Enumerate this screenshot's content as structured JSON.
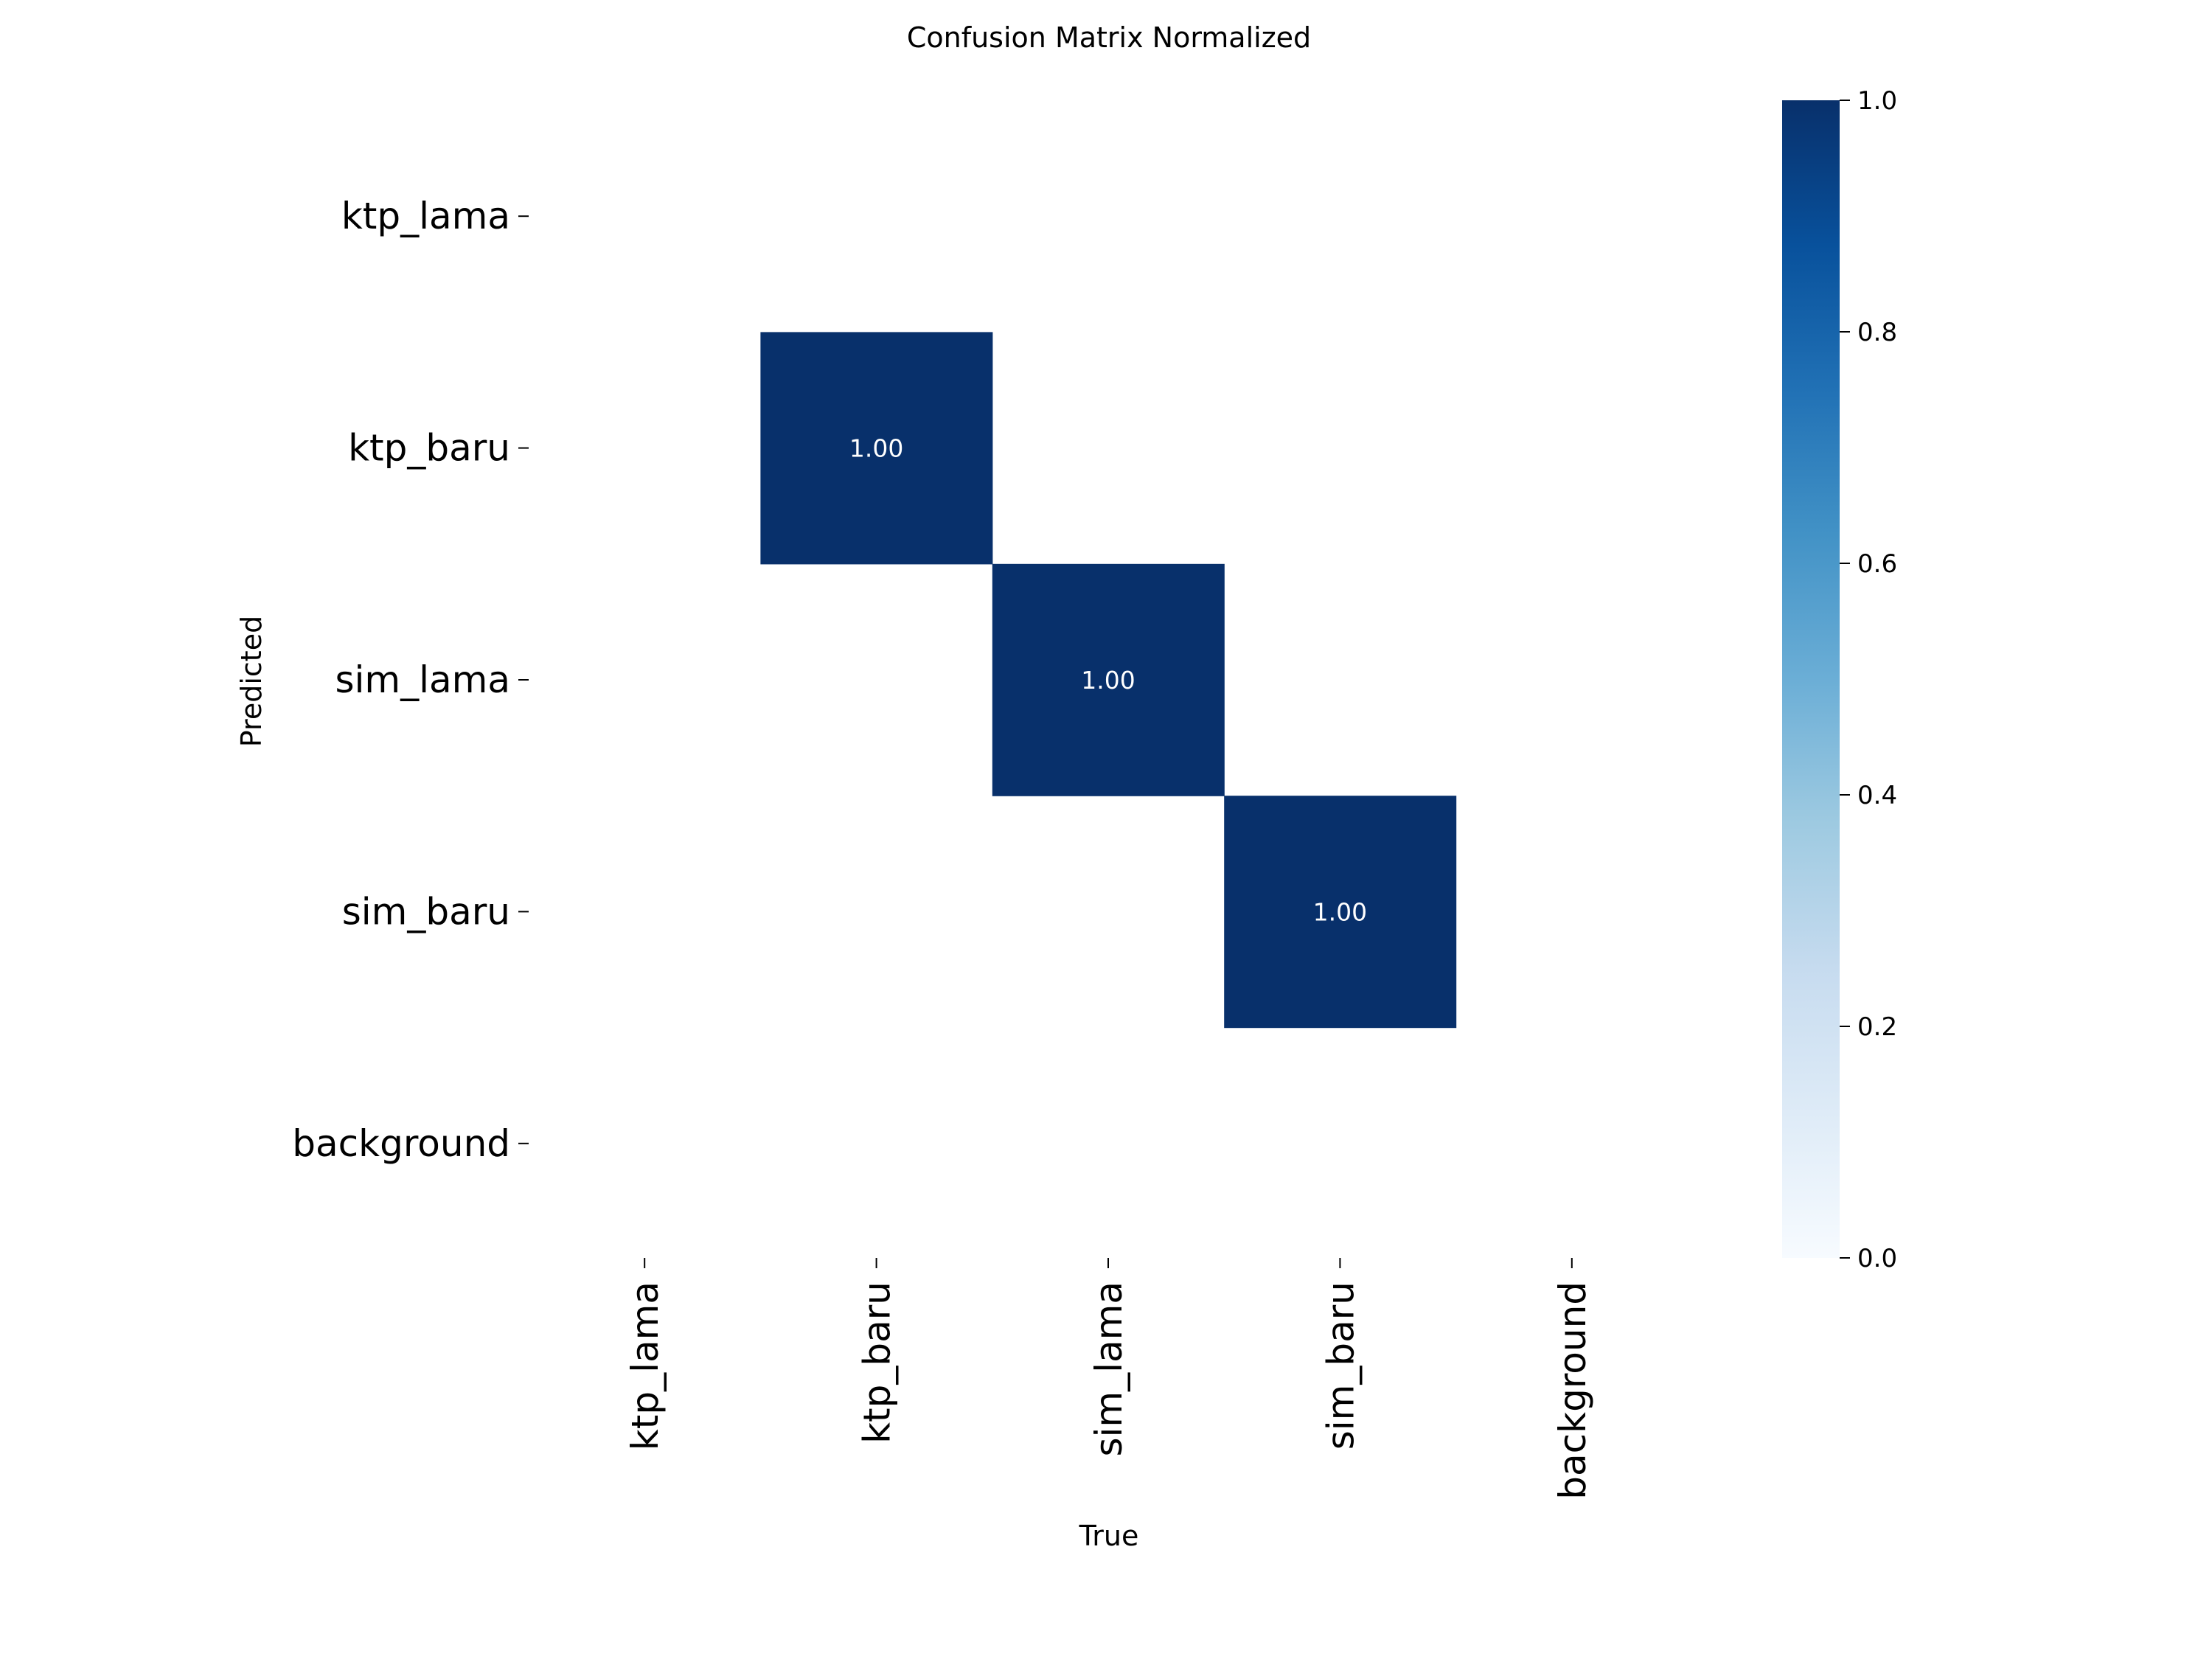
{
  "chart_data": {
    "type": "heatmap",
    "title": "Confusion Matrix Normalized",
    "xlabel": "True",
    "ylabel": "Predicted",
    "x_categories": [
      "ktp_lama",
      "ktp_baru",
      "sim_lama",
      "sim_baru",
      "background"
    ],
    "y_categories": [
      "ktp_lama",
      "ktp_baru",
      "sim_lama",
      "sim_baru",
      "background"
    ],
    "matrix": [
      [
        null,
        null,
        null,
        null,
        null
      ],
      [
        null,
        1.0,
        null,
        null,
        null
      ],
      [
        null,
        null,
        1.0,
        null,
        null
      ],
      [
        null,
        null,
        null,
        1.0,
        null
      ],
      [
        null,
        null,
        null,
        null,
        null
      ]
    ],
    "cell_labels": [
      [
        "",
        "",
        "",
        "",
        ""
      ],
      [
        "",
        "1.00",
        "",
        "",
        ""
      ],
      [
        "",
        "",
        "1.00",
        "",
        ""
      ],
      [
        "",
        "",
        "",
        "1.00",
        ""
      ],
      [
        "",
        "",
        "",
        "",
        ""
      ]
    ],
    "colormap": "Blues",
    "color_range": [
      0.0,
      1.0
    ],
    "colorbar_ticks": [
      "0.0",
      "0.2",
      "0.4",
      "0.6",
      "0.8",
      "1.0"
    ],
    "colors": {
      "low": "#f7fbff",
      "high": "#08306b",
      "cell_text_dark": "#ffffff",
      "cell_text_light": "#262626"
    }
  }
}
